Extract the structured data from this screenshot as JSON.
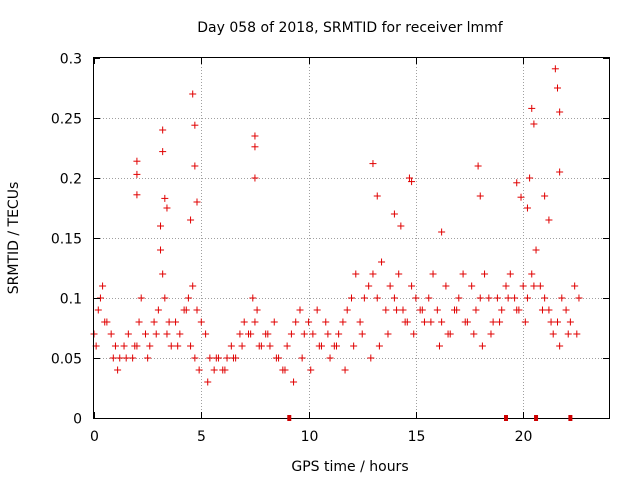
{
  "chart_data": {
    "type": "scatter",
    "title": "Day 058 of 2018, SRMTID for receiver lmmf",
    "xlabel": "GPS time / hours",
    "ylabel": "SRMTID / TECUs",
    "xlim": [
      0,
      24
    ],
    "ylim": [
      0,
      0.3
    ],
    "x_ticks": [
      "0",
      "5",
      "10",
      "15",
      "20"
    ],
    "x_tick_values": [
      0,
      5,
      10,
      15,
      20
    ],
    "y_ticks": [
      "0",
      "0.05",
      "0.1",
      "0.15",
      "0.2",
      "0.25",
      "0.3"
    ],
    "y_tick_values": [
      0,
      0.05,
      0.1,
      0.15,
      0.2,
      0.25,
      0.3
    ],
    "grid": true,
    "marker": "+",
    "color": "#e00000",
    "gap_markers_x": [
      9.1,
      19.2,
      20.6,
      22.2
    ],
    "series": [
      {
        "name": "SRMTID",
        "x": [
          0.0,
          0.2,
          0.4,
          0.6,
          0.8,
          1.0,
          1.2,
          1.4,
          1.6,
          1.8,
          2.0,
          2.2,
          2.4,
          2.6,
          2.8,
          3.0,
          3.2,
          3.4,
          3.6,
          3.8,
          4.0,
          4.2,
          4.4,
          4.6,
          4.8,
          5.0,
          5.2,
          5.4,
          5.6,
          5.8,
          6.0,
          6.2,
          6.4,
          6.6,
          6.8,
          7.0,
          7.2,
          7.4,
          7.6,
          7.8,
          8.0,
          8.2,
          8.4,
          8.6,
          8.8,
          9.0,
          9.2,
          9.4,
          9.6,
          9.8,
          10.0,
          10.2,
          10.4,
          10.6,
          10.8,
          11.0,
          11.2,
          11.4,
          11.6,
          11.8,
          12.0,
          12.2,
          12.4,
          12.6,
          12.8,
          13.0,
          13.2,
          13.4,
          13.6,
          13.8,
          14.0,
          14.2,
          14.4,
          14.6,
          14.8,
          15.0,
          15.2,
          15.4,
          15.6,
          15.8,
          16.0,
          16.2,
          16.4,
          16.6,
          16.8,
          17.0,
          17.2,
          17.4,
          17.6,
          17.8,
          18.0,
          18.2,
          18.4,
          18.6,
          18.8,
          19.0,
          19.2,
          19.4,
          19.6,
          19.8,
          20.0,
          20.2,
          20.4,
          20.6,
          20.8,
          21.0,
          21.2,
          21.4,
          21.6,
          21.8,
          22.0,
          22.2,
          22.4,
          22.6,
          0.1,
          0.3,
          0.5,
          0.9,
          1.1,
          1.5,
          1.9,
          2.1,
          2.5,
          2.9,
          3.1,
          3.3,
          3.5,
          3.9,
          4.3,
          4.5,
          4.7,
          4.9,
          5.3,
          5.7,
          6.1,
          6.5,
          6.9,
          7.3,
          7.5,
          7.7,
          8.1,
          8.5,
          8.9,
          9.3,
          9.7,
          10.1,
          10.5,
          10.9,
          11.3,
          11.7,
          12.1,
          12.5,
          12.9,
          13.3,
          13.7,
          14.1,
          14.5,
          14.9,
          15.3,
          15.7,
          16.1,
          16.5,
          16.9,
          17.3,
          17.7,
          18.1,
          18.5,
          18.9,
          19.3,
          19.7,
          20.1,
          20.5,
          20.9,
          21.3,
          21.7,
          22.1,
          22.5,
          2.0,
          2.0,
          2.0,
          3.2,
          3.2,
          3.3,
          4.6,
          4.7,
          4.7,
          7.5,
          7.5,
          7.5,
          13.0,
          13.2,
          14.7,
          14.8,
          17.9,
          18.0,
          19.7,
          19.9,
          20.3,
          20.4,
          20.5,
          21.5,
          21.6,
          21.7,
          21.7,
          3.1,
          3.4,
          4.5,
          4.8,
          14.0,
          14.3,
          16.2,
          20.2,
          21.0,
          21.2
        ],
        "y": [
          0.07,
          0.09,
          0.11,
          0.08,
          0.07,
          0.06,
          0.05,
          0.06,
          0.07,
          0.05,
          0.06,
          0.1,
          0.07,
          0.06,
          0.08,
          0.09,
          0.12,
          0.07,
          0.06,
          0.08,
          0.07,
          0.09,
          0.1,
          0.11,
          0.09,
          0.08,
          0.07,
          0.05,
          0.04,
          0.05,
          0.04,
          0.05,
          0.06,
          0.05,
          0.07,
          0.08,
          0.07,
          0.1,
          0.09,
          0.06,
          0.07,
          0.06,
          0.08,
          0.05,
          0.04,
          0.06,
          0.07,
          0.08,
          0.09,
          0.07,
          0.08,
          0.07,
          0.09,
          0.06,
          0.08,
          0.05,
          0.06,
          0.07,
          0.08,
          0.09,
          0.1,
          0.12,
          0.08,
          0.1,
          0.11,
          0.12,
          0.1,
          0.13,
          0.09,
          0.11,
          0.1,
          0.12,
          0.09,
          0.08,
          0.11,
          0.1,
          0.09,
          0.08,
          0.1,
          0.12,
          0.09,
          0.08,
          0.11,
          0.07,
          0.09,
          0.1,
          0.12,
          0.08,
          0.11,
          0.09,
          0.1,
          0.12,
          0.1,
          0.08,
          0.1,
          0.09,
          0.11,
          0.12,
          0.1,
          0.09,
          0.11,
          0.1,
          0.12,
          0.14,
          0.11,
          0.1,
          0.09,
          0.07,
          0.08,
          0.1,
          0.09,
          0.08,
          0.11,
          0.1,
          0.06,
          0.1,
          0.08,
          0.05,
          0.04,
          0.05,
          0.06,
          0.08,
          0.05,
          0.07,
          0.14,
          0.1,
          0.08,
          0.06,
          0.09,
          0.06,
          0.05,
          0.04,
          0.03,
          0.05,
          0.04,
          0.05,
          0.06,
          0.07,
          0.08,
          0.06,
          0.07,
          0.05,
          0.04,
          0.03,
          0.05,
          0.04,
          0.06,
          0.07,
          0.06,
          0.04,
          0.06,
          0.07,
          0.05,
          0.06,
          0.07,
          0.09,
          0.08,
          0.07,
          0.09,
          0.08,
          0.06,
          0.07,
          0.09,
          0.08,
          0.07,
          0.06,
          0.07,
          0.08,
          0.1,
          0.09,
          0.08,
          0.11,
          0.09,
          0.08,
          0.06,
          0.07,
          0.07,
          0.214,
          0.203,
          0.186,
          0.24,
          0.222,
          0.183,
          0.27,
          0.244,
          0.21,
          0.235,
          0.226,
          0.2,
          0.212,
          0.185,
          0.2,
          0.197,
          0.21,
          0.185,
          0.196,
          0.184,
          0.2,
          0.258,
          0.245,
          0.291,
          0.275,
          0.255,
          0.205,
          0.16,
          0.175,
          0.165,
          0.18,
          0.17,
          0.16,
          0.155,
          0.175,
          0.185,
          0.165
        ]
      }
    ]
  }
}
